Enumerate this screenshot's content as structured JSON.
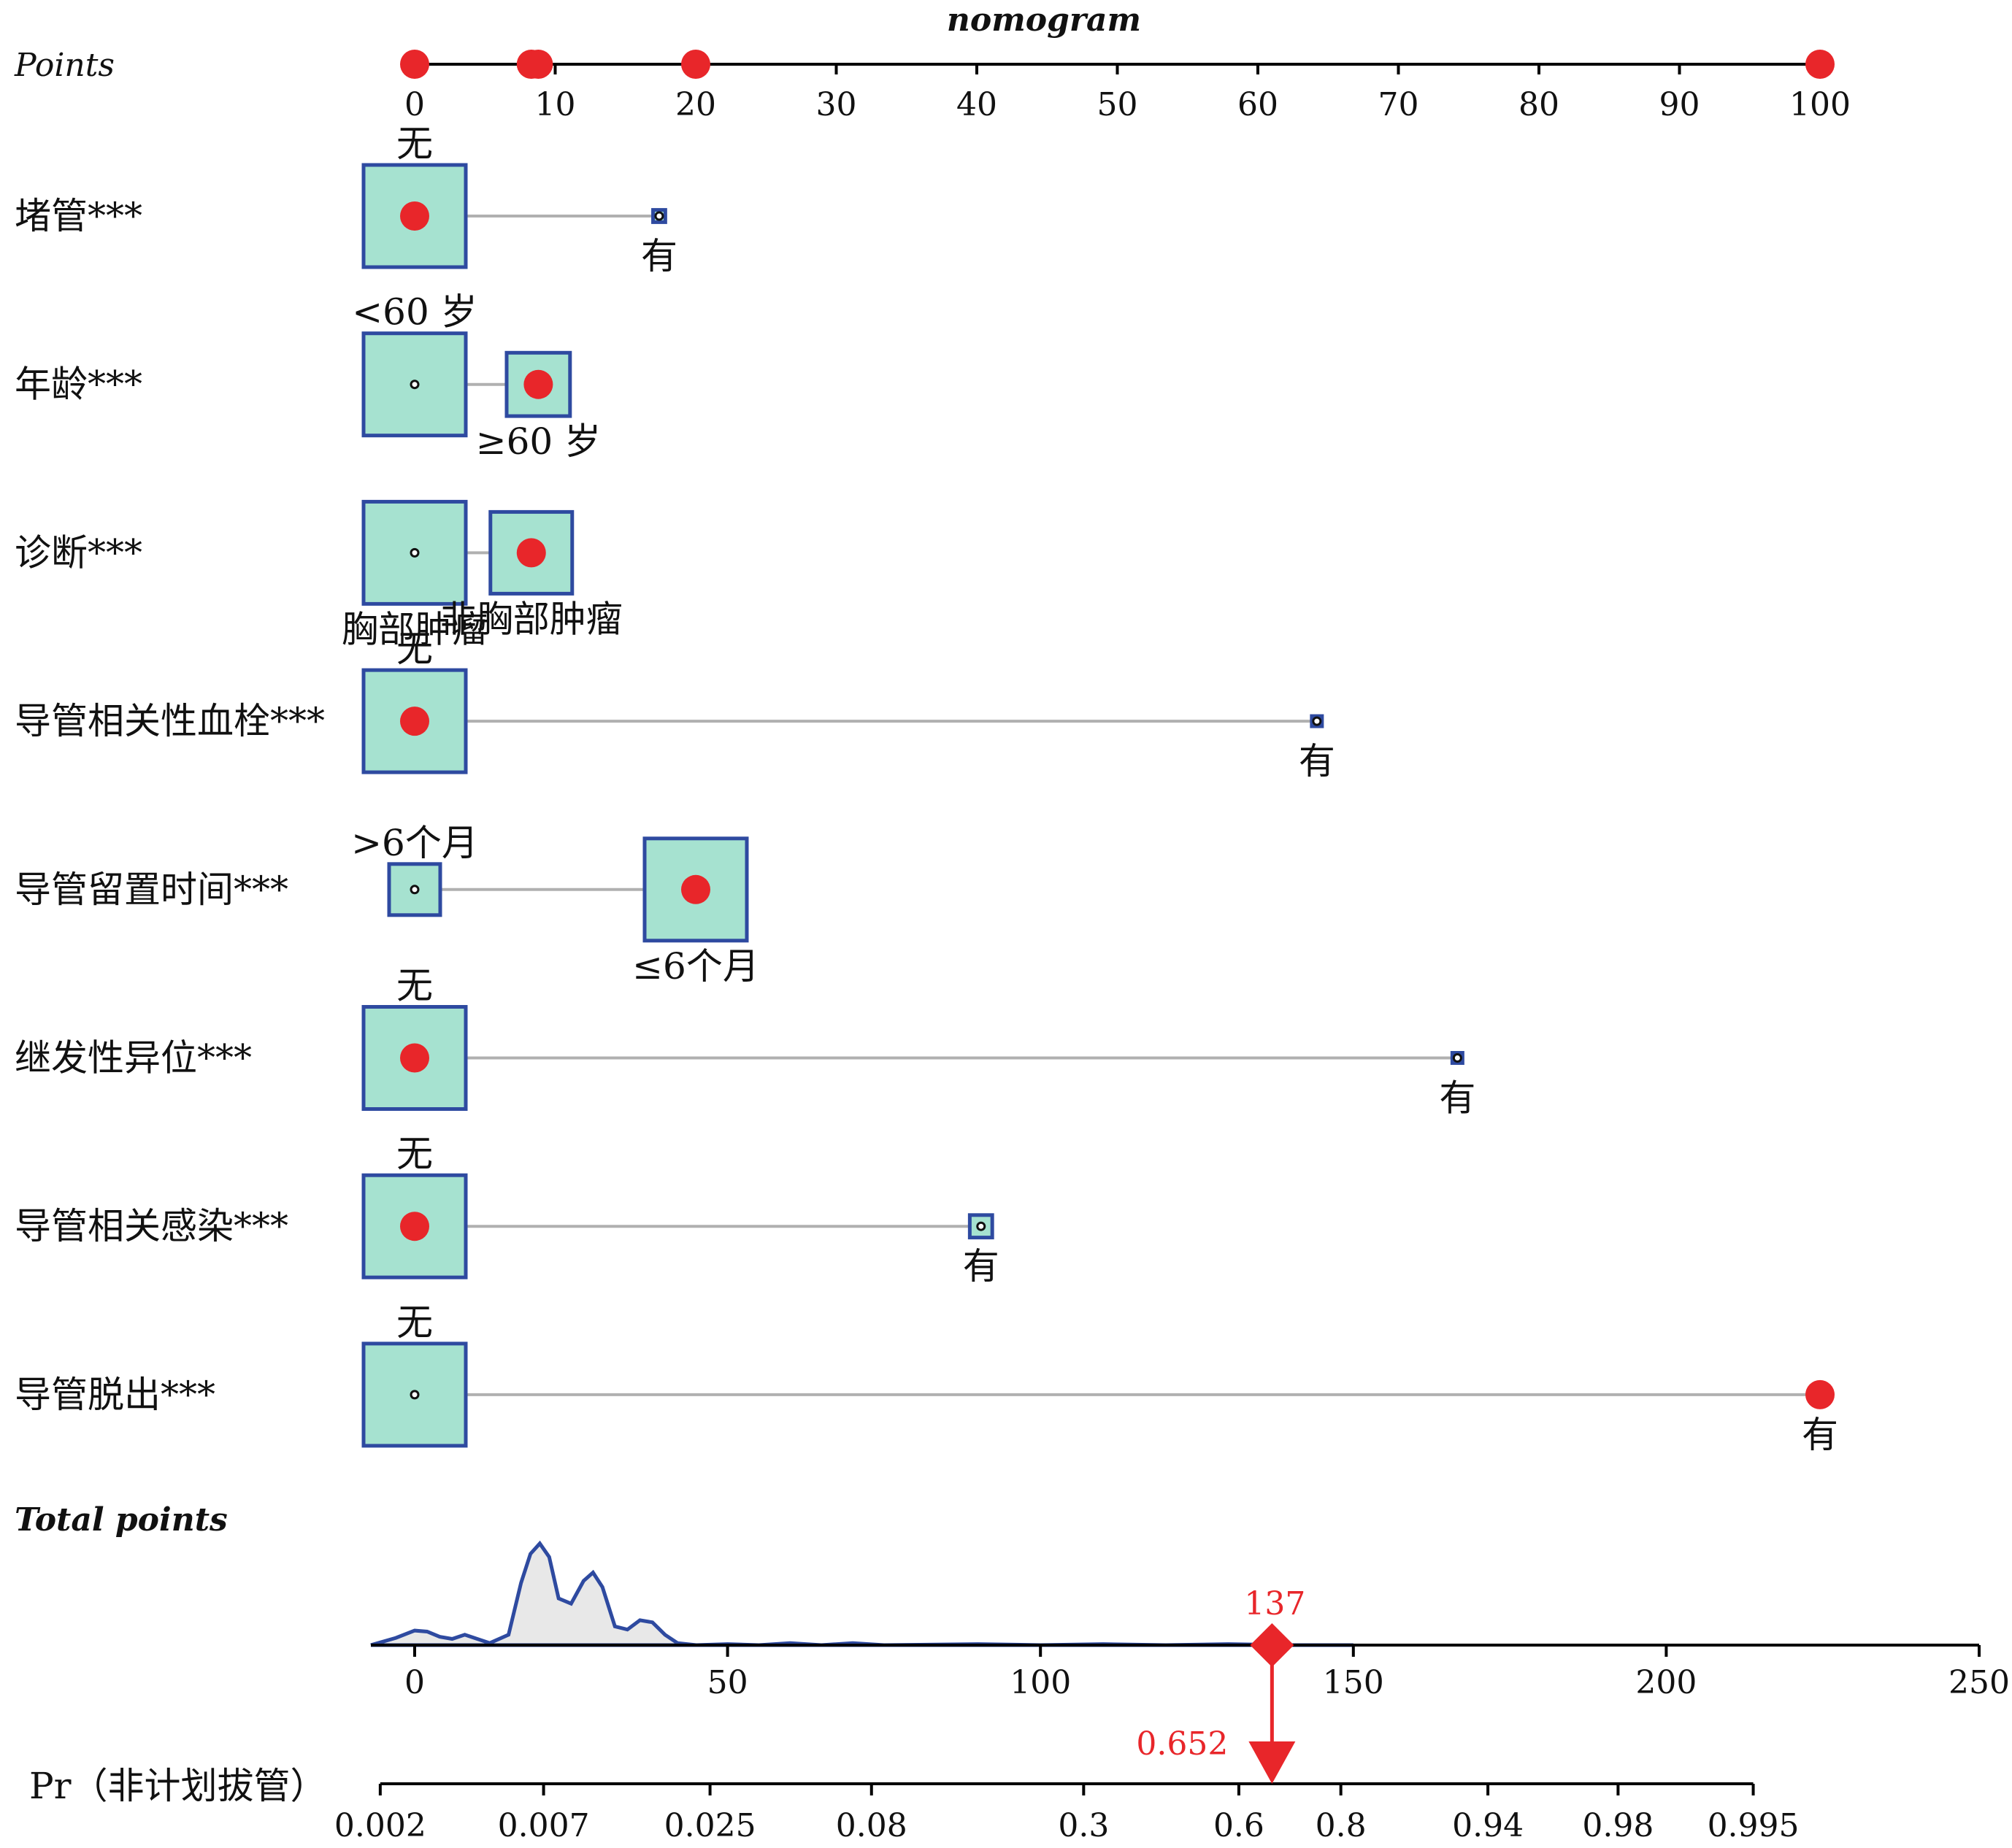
{
  "chart_data": {
    "type": "nomogram",
    "title": "nomogram",
    "points_axis": {
      "label": "Points",
      "ticks": [
        0,
        10,
        20,
        30,
        40,
        50,
        60,
        70,
        80,
        90,
        100
      ],
      "markers": [
        0,
        8.3,
        8.8,
        20,
        100
      ]
    },
    "variables": [
      {
        "name": "堵管***",
        "levels": [
          {
            "label": "无",
            "points": 0,
            "weight": 1.0,
            "selected": true,
            "label_pos": "above"
          },
          {
            "label": "有",
            "points": 17.4,
            "weight": 0.12,
            "selected": false,
            "label_pos": "below"
          }
        ]
      },
      {
        "name": "年龄***",
        "levels": [
          {
            "label": "<60 岁",
            "points": 0,
            "weight": 1.0,
            "selected": false,
            "label_pos": "above"
          },
          {
            "label": "≥60 岁",
            "points": 8.8,
            "weight": 0.62,
            "selected": true,
            "label_pos": "below"
          }
        ]
      },
      {
        "name": "诊断***",
        "levels": [
          {
            "label": "胸部肿瘤",
            "points": 0,
            "weight": 1.0,
            "selected": false,
            "label_pos": "below"
          },
          {
            "label": "非胸部肿瘤",
            "points": 8.3,
            "weight": 0.8,
            "selected": true,
            "label_pos": "below"
          }
        ]
      },
      {
        "name": "导管相关性血栓***",
        "levels": [
          {
            "label": "无",
            "points": 0,
            "weight": 1.0,
            "selected": true,
            "label_pos": "above"
          },
          {
            "label": "有",
            "points": 64.2,
            "weight": 0.1,
            "selected": false,
            "label_pos": "below"
          }
        ]
      },
      {
        "name": "导管留置时间***",
        "levels": [
          {
            "label": ">6个月",
            "points": 0,
            "weight": 0.5,
            "selected": false,
            "label_pos": "above"
          },
          {
            "label": "≤6个月",
            "points": 20,
            "weight": 1.0,
            "selected": true,
            "label_pos": "below"
          }
        ]
      },
      {
        "name": "继发性异位***",
        "levels": [
          {
            "label": "无",
            "points": 0,
            "weight": 1.0,
            "selected": true,
            "label_pos": "above"
          },
          {
            "label": "有",
            "points": 74.2,
            "weight": 0.1,
            "selected": false,
            "label_pos": "below"
          }
        ]
      },
      {
        "name": "导管相关感染***",
        "levels": [
          {
            "label": "无",
            "points": 0,
            "weight": 1.0,
            "selected": true,
            "label_pos": "above"
          },
          {
            "label": "有",
            "points": 40.3,
            "weight": 0.22,
            "selected": false,
            "label_pos": "below"
          }
        ]
      },
      {
        "name": "导管脱出***",
        "levels": [
          {
            "label": "无",
            "points": 0,
            "weight": 1.0,
            "selected": false,
            "label_pos": "above"
          },
          {
            "label": "有",
            "points": 100,
            "weight": 0,
            "selected": true,
            "label_pos": "below"
          }
        ]
      }
    ],
    "total_points_axis": {
      "label": "Total points",
      "ticks": [
        0,
        50,
        100,
        150,
        200,
        250
      ],
      "range": [
        -7,
        250
      ],
      "marked_value": 137,
      "marked_label": "137",
      "density": [
        [
          -7,
          0.0
        ],
        [
          -3,
          0.07
        ],
        [
          0,
          0.14
        ],
        [
          2,
          0.13
        ],
        [
          4,
          0.08
        ],
        [
          6,
          0.06
        ],
        [
          8,
          0.1
        ],
        [
          10,
          0.06
        ],
        [
          12,
          0.02
        ],
        [
          15,
          0.1
        ],
        [
          17,
          0.6
        ],
        [
          18.5,
          0.88
        ],
        [
          20,
          0.98
        ],
        [
          21.5,
          0.85
        ],
        [
          23,
          0.45
        ],
        [
          25,
          0.4
        ],
        [
          27,
          0.62
        ],
        [
          28.5,
          0.7
        ],
        [
          30,
          0.56
        ],
        [
          32,
          0.18
        ],
        [
          34,
          0.15
        ],
        [
          36,
          0.24
        ],
        [
          38,
          0.22
        ],
        [
          40,
          0.1
        ],
        [
          42,
          0.02
        ],
        [
          45,
          0.0
        ],
        [
          50,
          0.01
        ],
        [
          55,
          0.0
        ],
        [
          60,
          0.02
        ],
        [
          65,
          0.0
        ],
        [
          70,
          0.02
        ],
        [
          75,
          0.0
        ],
        [
          90,
          0.01
        ],
        [
          100,
          0.0
        ],
        [
          110,
          0.01
        ],
        [
          120,
          0.0
        ],
        [
          130,
          0.01
        ],
        [
          140,
          0.0
        ],
        [
          150,
          0.0
        ]
      ]
    },
    "probability_axis": {
      "label": "Pr（非计划拔管）",
      "tick_values": [
        0.002,
        0.007,
        0.025,
        0.08,
        0.3,
        0.6,
        0.8,
        0.94,
        0.98,
        0.995
      ],
      "tick_labels": [
        "0.002",
        "0.007",
        "0.025",
        "0.08",
        "0.3",
        "0.6",
        "0.8",
        "0.94",
        "0.98",
        "0.995"
      ],
      "tick_total_points": [
        -5.5,
        20.6,
        47.2,
        73.0,
        106.9,
        131.7,
        148.0,
        171.5,
        192.3,
        213.9
      ],
      "marked_value": 0.652,
      "marked_label": "0.652"
    },
    "colors": {
      "box_fill": "#a6e2d0",
      "box_stroke": "#2e4aa0",
      "marker": "#e8262a",
      "connector": "#b0b0b0",
      "density_fill": "#e8e8e8",
      "density_stroke": "#2e4aa0"
    }
  }
}
